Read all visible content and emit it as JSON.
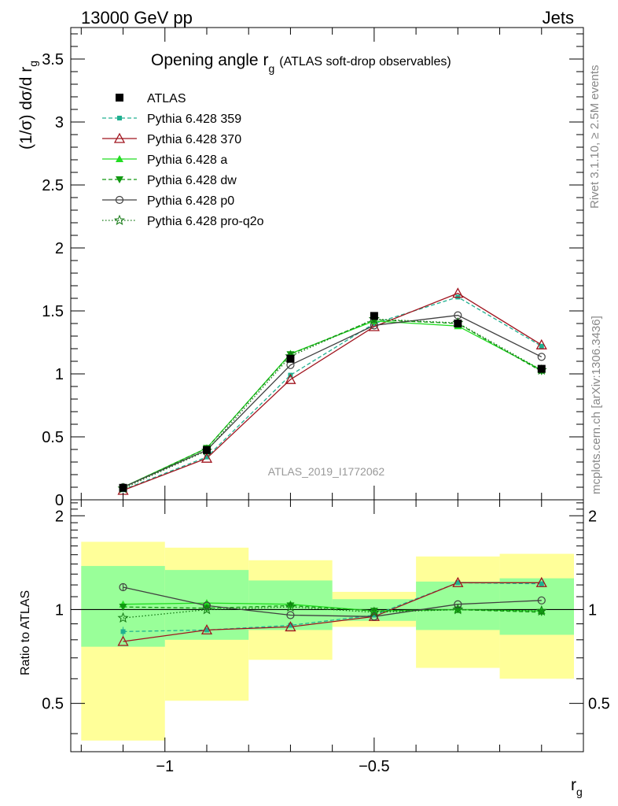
{
  "header": {
    "left": "13000 GeV pp",
    "right": "Jets"
  },
  "side_text": {
    "rivet": "Rivet 3.1.10, ≥ 2.5M events",
    "mcplots": "mcplots.cern.ch [arXiv:1306.3436]"
  },
  "chart_data": {
    "type": "line",
    "title_main": "Opening angle r",
    "title_sub": "g",
    "title_extra": "(ATLAS soft-drop observables)",
    "ylabel_main": "(1/σ) dσ/d r",
    "ylabel_sub": "g",
    "xlabel_main": "r",
    "xlabel_sub": "g",
    "analysis_label": "ATLAS_2019_I1772062",
    "log_x": true,
    "x": [
      -1.1,
      -0.9,
      -0.7,
      -0.5,
      -0.3,
      -0.1
    ],
    "x_edges": [
      -1.2,
      -1.0,
      -0.8,
      -0.6,
      -0.4,
      -0.2,
      0.0
    ],
    "xlim": [
      -1.225,
      0.0
    ],
    "main_ylim": [
      0,
      3.75
    ],
    "main_yticks": [
      "0",
      "0.5",
      "1",
      "1.5",
      "2",
      "2.5",
      "3",
      "3.5"
    ],
    "ratio_ylim": [
      0.35,
      2.25
    ],
    "ratio_yticks": [
      "0.5",
      "1",
      "2"
    ],
    "ratio_ylabel": "Ratio to ATLAS",
    "xtick_labels": [
      "−1",
      "−0.5"
    ],
    "data_series": {
      "name": "ATLAS",
      "values": [
        0.095,
        0.395,
        1.12,
        1.46,
        1.4,
        1.04
      ],
      "errors": [
        0.005,
        0.01,
        0.02,
        0.02,
        0.02,
        0.02
      ]
    },
    "ratio_bands": {
      "inner": [
        [
          0.76,
          1.38
        ],
        [
          0.8,
          1.34
        ],
        [
          0.86,
          1.24
        ],
        [
          0.92,
          1.08
        ],
        [
          0.86,
          1.23
        ],
        [
          0.83,
          1.26
        ]
      ],
      "outer": [
        [
          0.38,
          1.65
        ],
        [
          0.51,
          1.58
        ],
        [
          0.69,
          1.44
        ],
        [
          0.88,
          1.14
        ],
        [
          0.65,
          1.48
        ],
        [
          0.6,
          1.51
        ]
      ]
    },
    "series": [
      {
        "name": "Pythia 6.428 359",
        "values": [
          0.08,
          0.34,
          0.99,
          1.4,
          1.61,
          1.22
        ],
        "ratio": [
          0.85,
          0.86,
          0.89,
          0.96,
          1.22,
          1.21
        ],
        "ratio_err": [
          0.03,
          0,
          0,
          0,
          0,
          0
        ],
        "color": "#20b090",
        "dash": "5,3",
        "marker": "square-small"
      },
      {
        "name": "Pythia 6.428 370",
        "values": [
          0.075,
          0.33,
          0.955,
          1.375,
          1.64,
          1.23
        ],
        "ratio": [
          0.79,
          0.86,
          0.88,
          0.95,
          1.22,
          1.22
        ],
        "ratio_err": [
          0,
          0,
          0,
          0,
          0,
          0
        ],
        "color": "#a0141e",
        "dash": "",
        "marker": "triangle-up-open"
      },
      {
        "name": "Pythia 6.428 a",
        "values": [
          0.1,
          0.41,
          1.16,
          1.42,
          1.38,
          1.03
        ],
        "ratio": [
          1.04,
          1.05,
          1.04,
          0.99,
          1.0,
          0.99
        ],
        "ratio_err": [
          0,
          0,
          0,
          0,
          0,
          0
        ],
        "color": "#22dd22",
        "dash": "",
        "marker": "triangle-up"
      },
      {
        "name": "Pythia 6.428 dw",
        "values": [
          0.098,
          0.41,
          1.155,
          1.43,
          1.4,
          1.02
        ],
        "ratio": [
          1.02,
          1.01,
          1.03,
          0.99,
          1.0,
          0.98
        ],
        "ratio_err": [
          0,
          0,
          0,
          0,
          0,
          0
        ],
        "color": "#119911",
        "dash": "5,3",
        "marker": "triangle-down"
      },
      {
        "name": "Pythia 6.428 p0",
        "values": [
          0.1,
          0.395,
          1.07,
          1.385,
          1.465,
          1.135
        ],
        "ratio": [
          1.18,
          1.03,
          0.96,
          0.95,
          1.04,
          1.07
        ],
        "ratio_err": [
          0.03,
          0,
          0,
          0,
          0,
          0
        ],
        "color": "#404040",
        "dash": "",
        "marker": "circle-open"
      },
      {
        "name": "Pythia 6.428 pro-q2o",
        "values": [
          0.09,
          0.39,
          1.14,
          1.435,
          1.405,
          1.03
        ],
        "ratio": [
          0.94,
          1.0,
          1.02,
          0.98,
          1.0,
          0.99
        ],
        "ratio_err": [
          0,
          0,
          0,
          0,
          0,
          0
        ],
        "color": "#117711",
        "dash": "1.5,2.5",
        "marker": "star-open"
      }
    ]
  }
}
